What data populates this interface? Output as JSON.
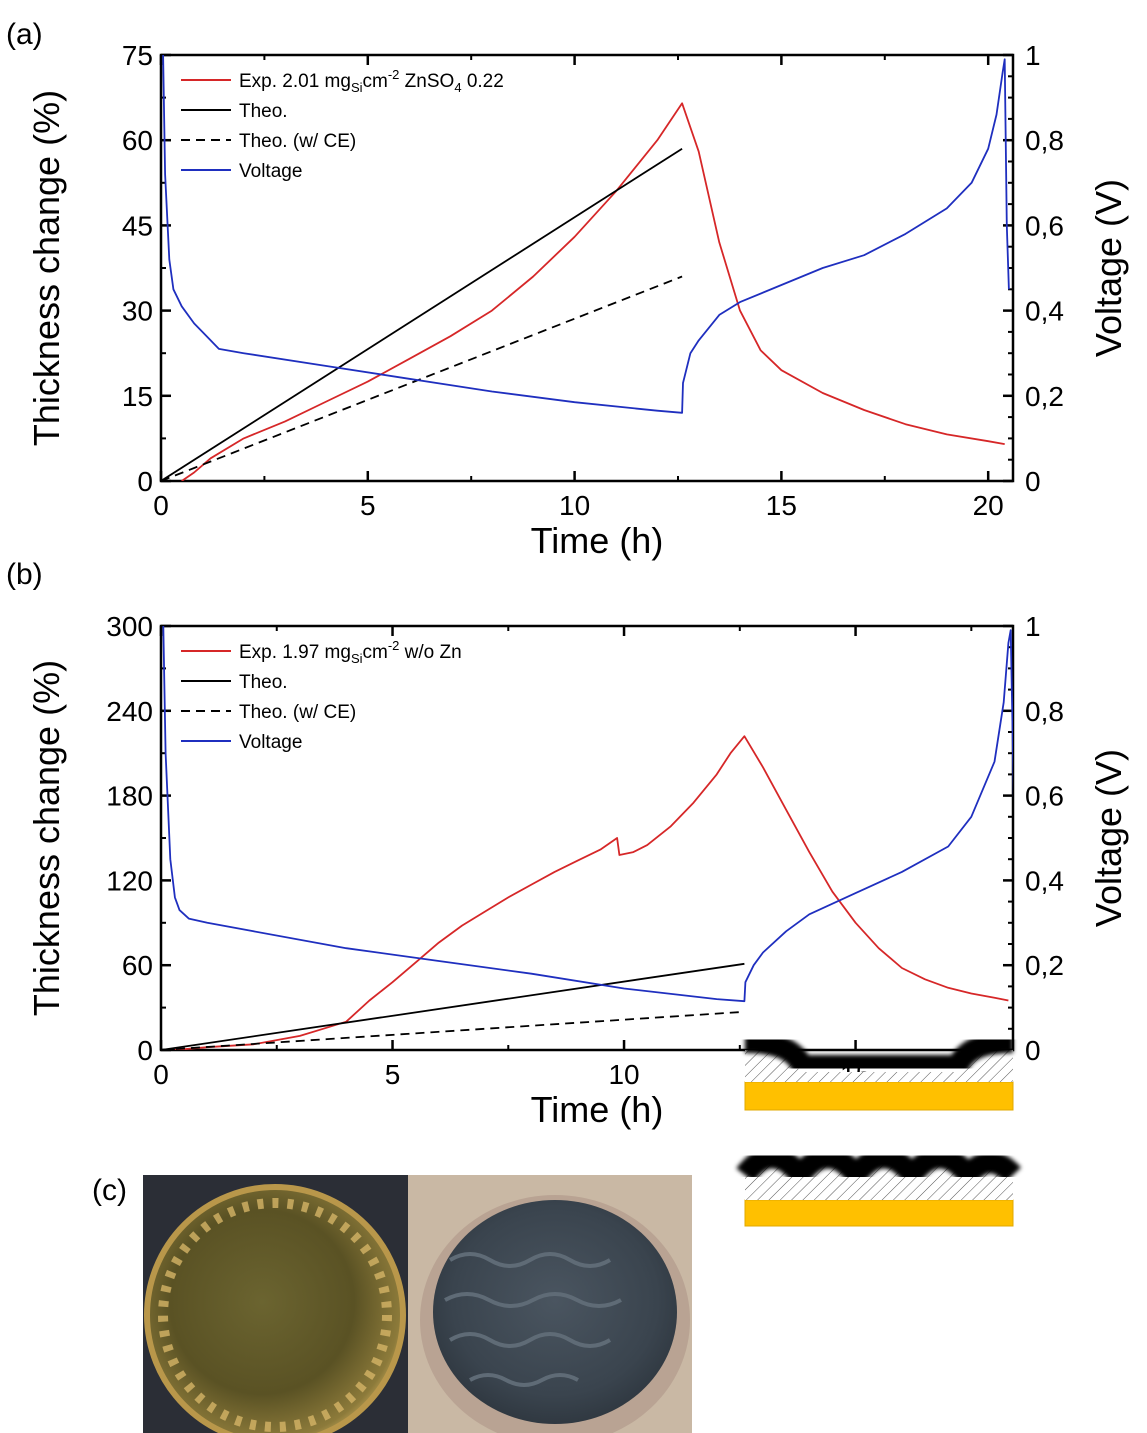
{
  "panels": [
    {
      "label": "(a)",
      "chart_data": {
        "type": "line",
        "xlabel": "Time (h)",
        "ylabel": "Thickness change (%)",
        "y2label": "Voltage (V)",
        "xlim": [
          0,
          20.6
        ],
        "ylim": [
          0,
          75
        ],
        "y2lim": [
          0,
          1
        ],
        "xticks": [
          0,
          5,
          10,
          15,
          20
        ],
        "yticks": [
          0,
          15,
          30,
          45,
          60,
          75
        ],
        "y2ticks": [
          "0",
          "0,2",
          "0,4",
          "0,6",
          "0,8",
          "1"
        ],
        "legend_placement": "top-left",
        "legend": [
          {
            "text": "Exp. 2.01 mg",
            "sub": "Si",
            "mid": "cm",
            "sup": "-2",
            "tail": " ZnSO",
            "sub2": "4",
            "tail2": " 0.22"
          },
          {
            "text": "Theo."
          },
          {
            "text": "Theo. (w/ CE)"
          },
          {
            "text": "Voltage"
          }
        ],
        "series": [
          {
            "name": "Exp. 2.01 mgSicm-2 ZnSO4 0.22",
            "axis": "left",
            "color": "#d62728",
            "dash": false,
            "points": [
              [
                0.5,
                0
              ],
              [
                0.8,
                1.5
              ],
              [
                1.2,
                4
              ],
              [
                2,
                7.5
              ],
              [
                3,
                10.5
              ],
              [
                4,
                14
              ],
              [
                5,
                17.5
              ],
              [
                6,
                21.5
              ],
              [
                7,
                25.5
              ],
              [
                8,
                30
              ],
              [
                9,
                36
              ],
              [
                10,
                43
              ],
              [
                11,
                51
              ],
              [
                12,
                60
              ],
              [
                12.6,
                66.5
              ],
              [
                13,
                58
              ],
              [
                13.5,
                42
              ],
              [
                14,
                30
              ],
              [
                14.5,
                23
              ],
              [
                15,
                19.5
              ],
              [
                16,
                15.5
              ],
              [
                17,
                12.5
              ],
              [
                18,
                10
              ],
              [
                19,
                8.2
              ],
              [
                20,
                7
              ],
              [
                20.4,
                6.5
              ]
            ]
          },
          {
            "name": "Theo.",
            "axis": "left",
            "color": "#000000",
            "dash": false,
            "points": [
              [
                0,
                0
              ],
              [
                12.6,
                58.5
              ]
            ]
          },
          {
            "name": "Theo. (w/ CE)",
            "axis": "left",
            "color": "#000000",
            "dash": true,
            "points": [
              [
                0,
                0
              ],
              [
                12.6,
                36
              ]
            ]
          },
          {
            "name": "Voltage",
            "axis": "right",
            "color": "#1f2fbf",
            "dash": false,
            "points": [
              [
                0.05,
                1.0
              ],
              [
                0.1,
                0.72
              ],
              [
                0.2,
                0.52
              ],
              [
                0.3,
                0.45
              ],
              [
                0.5,
                0.41
              ],
              [
                0.8,
                0.37
              ],
              [
                1,
                0.35
              ],
              [
                1.4,
                0.31
              ],
              [
                2,
                0.3
              ],
              [
                4,
                0.27
              ],
              [
                6,
                0.24
              ],
              [
                8,
                0.21
              ],
              [
                10,
                0.185
              ],
              [
                12,
                0.165
              ],
              [
                12.6,
                0.16
              ],
              [
                12.62,
                0.23
              ],
              [
                12.8,
                0.3
              ],
              [
                13,
                0.33
              ],
              [
                13.5,
                0.39
              ],
              [
                14,
                0.42
              ],
              [
                15,
                0.46
              ],
              [
                16,
                0.5
              ],
              [
                17,
                0.53
              ],
              [
                18,
                0.58
              ],
              [
                19,
                0.64
              ],
              [
                19.6,
                0.7
              ],
              [
                20,
                0.78
              ],
              [
                20.2,
                0.86
              ],
              [
                20.35,
                0.96
              ],
              [
                20.4,
                0.99
              ],
              [
                20.45,
                0.6
              ],
              [
                20.5,
                0.45
              ]
            ]
          }
        ]
      }
    },
    {
      "label": "(b)",
      "chart_data": {
        "type": "line",
        "xlabel": "Time (h)",
        "ylabel": "Thickness change (%)",
        "y2label": "Voltage (V)",
        "xlim": [
          0,
          18.4
        ],
        "ylim": [
          0,
          300
        ],
        "y2lim": [
          0,
          1
        ],
        "xticks": [
          0,
          5,
          10,
          15
        ],
        "yticks": [
          0,
          60,
          120,
          180,
          240,
          300
        ],
        "y2ticks": [
          "0",
          "0,2",
          "0,4",
          "0,6",
          "0,8",
          "1"
        ],
        "legend_placement": "top-left",
        "legend": [
          {
            "text": "Exp. 1.97 mg",
            "sub": "Si",
            "mid": "cm",
            "sup": "-2",
            "tail": " w/o Zn"
          },
          {
            "text": "Theo."
          },
          {
            "text": "Theo. (w/ CE)"
          },
          {
            "text": "Voltage"
          }
        ],
        "series": [
          {
            "name": "Exp. 1.97 mgSicm-2 w/o Zn",
            "axis": "left",
            "color": "#d62728",
            "dash": false,
            "points": [
              [
                0.3,
                0
              ],
              [
                1,
                2
              ],
              [
                2,
                4
              ],
              [
                3,
                10
              ],
              [
                3.5,
                15
              ],
              [
                4,
                20
              ],
              [
                4.5,
                35
              ],
              [
                5,
                48
              ],
              [
                5.5,
                62
              ],
              [
                6,
                76
              ],
              [
                6.5,
                88
              ],
              [
                7,
                98
              ],
              [
                7.5,
                108
              ],
              [
                8,
                117
              ],
              [
                8.5,
                126
              ],
              [
                9,
                134
              ],
              [
                9.5,
                142
              ],
              [
                9.85,
                150
              ],
              [
                9.9,
                138
              ],
              [
                10.2,
                140
              ],
              [
                10.5,
                145
              ],
              [
                11,
                158
              ],
              [
                11.5,
                175
              ],
              [
                12,
                195
              ],
              [
                12.3,
                210
              ],
              [
                12.6,
                222
              ],
              [
                13,
                200
              ],
              [
                13.5,
                170
              ],
              [
                14,
                140
              ],
              [
                14.5,
                112
              ],
              [
                15,
                90
              ],
              [
                15.5,
                72
              ],
              [
                16,
                58
              ],
              [
                16.5,
                50
              ],
              [
                17,
                44
              ],
              [
                17.5,
                40
              ],
              [
                18,
                37
              ],
              [
                18.3,
                35
              ]
            ]
          },
          {
            "name": "Theo.",
            "axis": "left",
            "color": "#000000",
            "dash": false,
            "points": [
              [
                0,
                0
              ],
              [
                12.6,
                61
              ]
            ]
          },
          {
            "name": "Theo. (w/ CE)",
            "axis": "left",
            "color": "#000000",
            "dash": true,
            "points": [
              [
                0,
                0
              ],
              [
                12.6,
                27
              ]
            ]
          },
          {
            "name": "Voltage",
            "axis": "right",
            "color": "#1f2fbf",
            "dash": false,
            "points": [
              [
                0.05,
                1.0
              ],
              [
                0.1,
                0.7
              ],
              [
                0.2,
                0.45
              ],
              [
                0.3,
                0.36
              ],
              [
                0.4,
                0.33
              ],
              [
                0.6,
                0.31
              ],
              [
                1,
                0.3
              ],
              [
                2,
                0.28
              ],
              [
                4,
                0.24
              ],
              [
                6,
                0.21
              ],
              [
                8,
                0.18
              ],
              [
                10,
                0.145
              ],
              [
                12,
                0.12
              ],
              [
                12.6,
                0.115
              ],
              [
                12.62,
                0.16
              ],
              [
                12.8,
                0.2
              ],
              [
                13,
                0.23
              ],
              [
                13.5,
                0.28
              ],
              [
                14,
                0.32
              ],
              [
                15,
                0.37
              ],
              [
                16,
                0.42
              ],
              [
                17,
                0.48
              ],
              [
                17.5,
                0.55
              ],
              [
                18,
                0.68
              ],
              [
                18.2,
                0.82
              ],
              [
                18.3,
                0.96
              ],
              [
                18.35,
                0.99
              ],
              [
                18.4,
                0.7
              ],
              [
                18.45,
                0.42
              ]
            ]
          }
        ]
      }
    }
  ],
  "panel_c_label": "(c)"
}
